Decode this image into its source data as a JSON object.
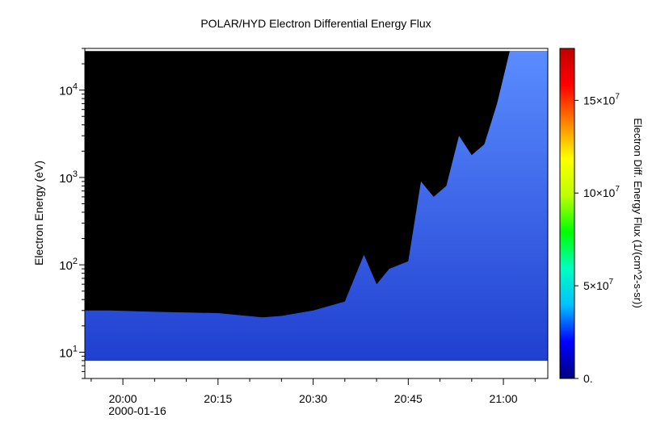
{
  "chart_data": {
    "type": "heatmap",
    "title": "POLAR/HYD  Electron Differential Energy Flux",
    "xlabel": "",
    "ylabel": "Electron Energy (eV)",
    "x_ticks": [
      "20:00",
      "20:15",
      "20:30",
      "20:45",
      "21:00"
    ],
    "x_date_label": "2000-01-16",
    "x_range": [
      "19:54",
      "21:07"
    ],
    "y_scale": "log",
    "y_ticks": [
      {
        "base": "10",
        "exp": "1"
      },
      {
        "base": "10",
        "exp": "2"
      },
      {
        "base": "10",
        "exp": "3"
      },
      {
        "base": "10",
        "exp": "4"
      }
    ],
    "ylim": [
      5,
      30000
    ],
    "data_energy_range": [
      8,
      28000
    ],
    "colorbar": {
      "label": "Electron Diff. Energy Flux (1/(cm^2-s-sr))",
      "range": [
        0,
        178000000.0
      ],
      "scale": "linear",
      "ticks": [
        {
          "value": 0,
          "label": "0.",
          "exp": ""
        },
        {
          "value": 50000000.0,
          "label": "5×10",
          "exp": "7"
        },
        {
          "value": 100000000.0,
          "label": "10×10",
          "exp": "7"
        },
        {
          "value": 150000000.0,
          "label": "15×10",
          "exp": "7"
        }
      ],
      "colormap": [
        "#000080",
        "#0000ff",
        "#00c0ff",
        "#00ffc0",
        "#00ff00",
        "#c0ff00",
        "#ffff00",
        "#ff8000",
        "#ff0000",
        "#c00000"
      ]
    },
    "background_color": "#000000",
    "flux_color_low": "#2040d0",
    "flux_color_high": "#5a8cff",
    "flux_profile": [
      {
        "time": "19:54",
        "upper_energy": 30
      },
      {
        "time": "19:58",
        "upper_energy": 30
      },
      {
        "time": "20:05",
        "upper_energy": 29
      },
      {
        "time": "20:15",
        "upper_energy": 28
      },
      {
        "time": "20:22",
        "upper_energy": 25
      },
      {
        "time": "20:25",
        "upper_energy": 26
      },
      {
        "time": "20:30",
        "upper_energy": 30
      },
      {
        "time": "20:35",
        "upper_energy": 38
      },
      {
        "time": "20:38",
        "upper_energy": 130
      },
      {
        "time": "20:40",
        "upper_energy": 60
      },
      {
        "time": "20:42",
        "upper_energy": 90
      },
      {
        "time": "20:45",
        "upper_energy": 110
      },
      {
        "time": "20:47",
        "upper_energy": 900
      },
      {
        "time": "20:49",
        "upper_energy": 600
      },
      {
        "time": "20:51",
        "upper_energy": 800
      },
      {
        "time": "20:53",
        "upper_energy": 3000
      },
      {
        "time": "20:55",
        "upper_energy": 1800
      },
      {
        "time": "20:57",
        "upper_energy": 2400
      },
      {
        "time": "20:59",
        "upper_energy": 7000
      },
      {
        "time": "21:01",
        "upper_energy": 28000
      },
      {
        "time": "21:07",
        "upper_energy": 28000
      }
    ]
  }
}
